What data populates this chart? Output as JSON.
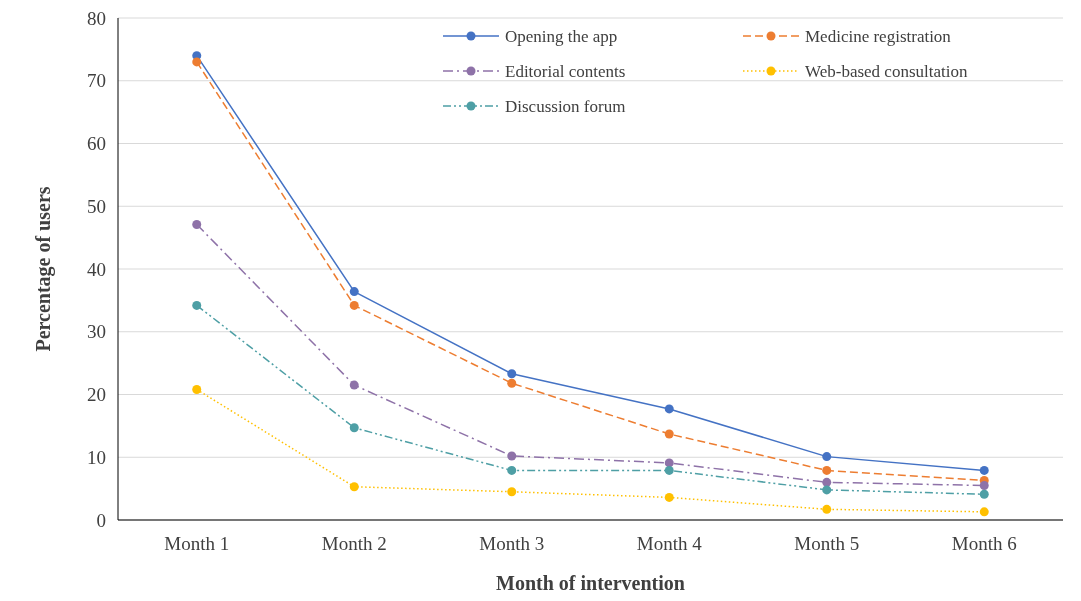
{
  "chart_data": {
    "type": "line",
    "xlabel": "Month of intervention",
    "ylabel": "Percentage of users",
    "categories": [
      "Month 1",
      "Month 2",
      "Month 3",
      "Month 4",
      "Month 5",
      "Month 6"
    ],
    "series": [
      {
        "name": "Opening the app",
        "color": "#4472c4",
        "line_style": "solid",
        "values": [
          74,
          36.4,
          23.3,
          17.7,
          10.1,
          7.9
        ]
      },
      {
        "name": "Medicine registration",
        "color": "#ed7d31",
        "line_style": "dashed",
        "values": [
          73,
          34.2,
          21.8,
          13.7,
          7.9,
          6.3
        ]
      },
      {
        "name": "Editorial contents",
        "color": "#8e72a8",
        "line_style": "dashdot",
        "values": [
          47.1,
          21.5,
          10.2,
          9.1,
          6,
          5.5
        ]
      },
      {
        "name": "Web-based consultation",
        "color": "#ffc000",
        "line_style": "dotted",
        "values": [
          20.8,
          5.3,
          4.5,
          3.6,
          1.7,
          1.3
        ]
      },
      {
        "name": "Discussion forum",
        "color": "#4e9fa5",
        "line_style": "dashdotdot",
        "values": [
          34.2,
          14.7,
          7.9,
          7.9,
          4.8,
          4.1
        ]
      }
    ],
    "ylim": [
      0,
      80
    ],
    "yticks": [
      0,
      10,
      20,
      30,
      40,
      50,
      60,
      70,
      80
    ],
    "grid": "y",
    "legend": "top right",
    "marker": "circle"
  }
}
